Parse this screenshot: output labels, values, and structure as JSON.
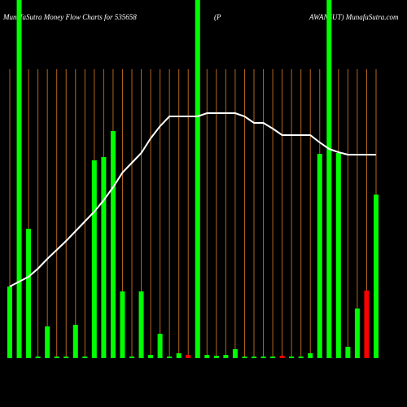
{
  "chart_data": {
    "type": "bar-line",
    "title": [
      "MunafaSutra  Money Flow  Charts for 535658",
      "(P",
      "AWANSUT) MunafaSutra.com"
    ],
    "ylim": [
      0,
      440
    ],
    "bar_values": [
      88,
      440,
      159,
      2,
      39,
      2,
      2,
      41,
      2,
      243,
      247,
      279,
      82,
      2,
      82,
      4,
      30,
      2,
      6,
      4,
      440,
      4,
      3,
      4,
      11,
      2,
      2,
      2,
      2,
      3,
      2,
      2,
      6,
      251,
      440,
      252,
      14,
      61,
      83,
      201
    ],
    "bar_colors": [
      "#00ff00",
      "#00ff00",
      "#00ff00",
      "#00ff00",
      "#00ff00",
      "#00ff00",
      "#00ff00",
      "#00ff00",
      "#00ff00",
      "#00ff00",
      "#00ff00",
      "#00ff00",
      "#00ff00",
      "#00ff00",
      "#00ff00",
      "#00ff00",
      "#00ff00",
      "#00ff00",
      "#00ff00",
      "#ff0000",
      "#00ff00",
      "#00ff00",
      "#00ff00",
      "#00ff00",
      "#00ff00",
      "#00ff00",
      "#00ff00",
      "#00ff00",
      "#00ff00",
      "#ff0000",
      "#00ff00",
      "#00ff00",
      "#00ff00",
      "#00ff00",
      "#00ff00",
      "#00ff00",
      "#00ff00",
      "#00ff00",
      "#ff0000",
      "#00ff00"
    ],
    "line_values": [
      88,
      94,
      100,
      110,
      122,
      133,
      144,
      156,
      168,
      180,
      194,
      210,
      228,
      240,
      252,
      270,
      285,
      297,
      297,
      297,
      297,
      301,
      301,
      301,
      301,
      297,
      289,
      289,
      282,
      274,
      274,
      274,
      274,
      265,
      257,
      253,
      250,
      250,
      250,
      250
    ],
    "line_color": "#ffffff",
    "grid_color": "#b5651d"
  }
}
